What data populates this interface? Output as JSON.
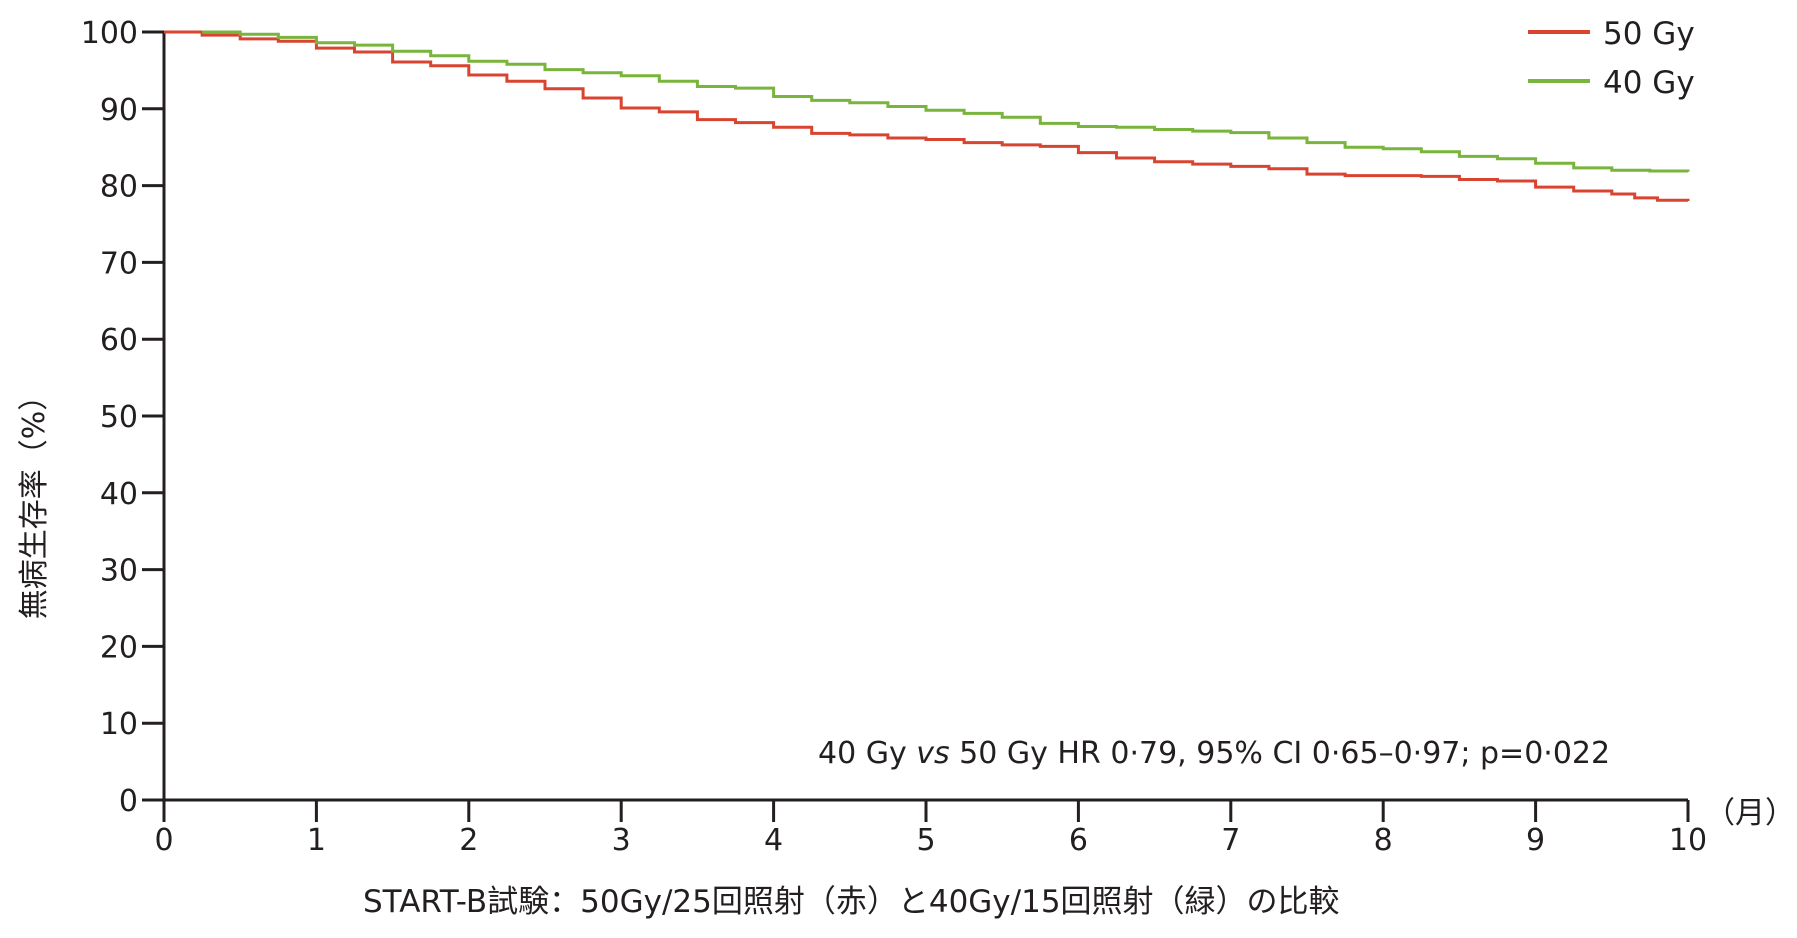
{
  "chart_data": {
    "type": "line",
    "title": "",
    "caption": "START-B試験：50Gy/25回照射（赤）と40Gy/15回照射（緑）の比較",
    "ylabel": "無病生存率（%）",
    "xunit": "（月）",
    "xlim": [
      0,
      10
    ],
    "ylim": [
      0,
      100
    ],
    "xticks": [
      "0",
      "1",
      "2",
      "3",
      "4",
      "5",
      "6",
      "7",
      "8",
      "9",
      "10"
    ],
    "yticks": [
      "0",
      "10",
      "20",
      "30",
      "40",
      "50",
      "60",
      "70",
      "80",
      "90",
      "100"
    ],
    "grid": false,
    "legend_position": "top-right",
    "annotation": "40 Gy vs 50 Gy HR 0·79, 95% CI 0·65–0·97; p=0·022",
    "series": [
      {
        "name": "50 Gy",
        "color": "#d94431",
        "x": [
          0,
          0.25,
          0.5,
          0.75,
          1.0,
          1.25,
          1.5,
          1.75,
          2.0,
          2.25,
          2.5,
          2.75,
          3.0,
          3.25,
          3.5,
          3.75,
          4.0,
          4.25,
          4.5,
          4.75,
          5.0,
          5.25,
          5.5,
          5.75,
          6.0,
          6.25,
          6.5,
          6.75,
          7.0,
          7.25,
          7.5,
          7.75,
          8.0,
          8.25,
          8.5,
          8.75,
          9.0,
          9.25,
          9.5,
          9.65,
          9.8,
          10.0
        ],
        "y": [
          100,
          99.6,
          99.1,
          98.8,
          97.9,
          97.4,
          96.1,
          95.6,
          94.4,
          93.6,
          92.6,
          91.4,
          90.1,
          89.6,
          88.6,
          88.2,
          87.6,
          86.8,
          86.6,
          86.2,
          86.0,
          85.6,
          85.3,
          85.1,
          84.3,
          83.6,
          83.1,
          82.8,
          82.5,
          82.2,
          81.5,
          81.3,
          81.3,
          81.2,
          80.8,
          80.6,
          79.8,
          79.3,
          78.9,
          78.4,
          78.1,
          78.0
        ]
      },
      {
        "name": "40 Gy",
        "color": "#79b43c",
        "x": [
          0.25,
          0.5,
          0.75,
          1.0,
          1.25,
          1.5,
          1.75,
          2.0,
          2.25,
          2.5,
          2.75,
          3.0,
          3.25,
          3.5,
          3.75,
          4.0,
          4.25,
          4.5,
          4.75,
          5.0,
          5.25,
          5.5,
          5.75,
          6.0,
          6.25,
          6.5,
          6.75,
          7.0,
          7.25,
          7.5,
          7.75,
          8.0,
          8.25,
          8.5,
          8.75,
          9.0,
          9.25,
          9.5,
          9.75,
          10.0
        ],
        "y": [
          100,
          99.7,
          99.3,
          98.6,
          98.3,
          97.5,
          96.9,
          96.2,
          95.8,
          95.1,
          94.7,
          94.3,
          93.6,
          92.9,
          92.7,
          91.6,
          91.1,
          90.8,
          90.3,
          89.8,
          89.4,
          88.9,
          88.1,
          87.7,
          87.6,
          87.3,
          87.1,
          86.9,
          86.2,
          85.6,
          85.0,
          84.8,
          84.4,
          83.8,
          83.5,
          82.9,
          82.3,
          82.0,
          81.9,
          81.8
        ]
      }
    ]
  }
}
